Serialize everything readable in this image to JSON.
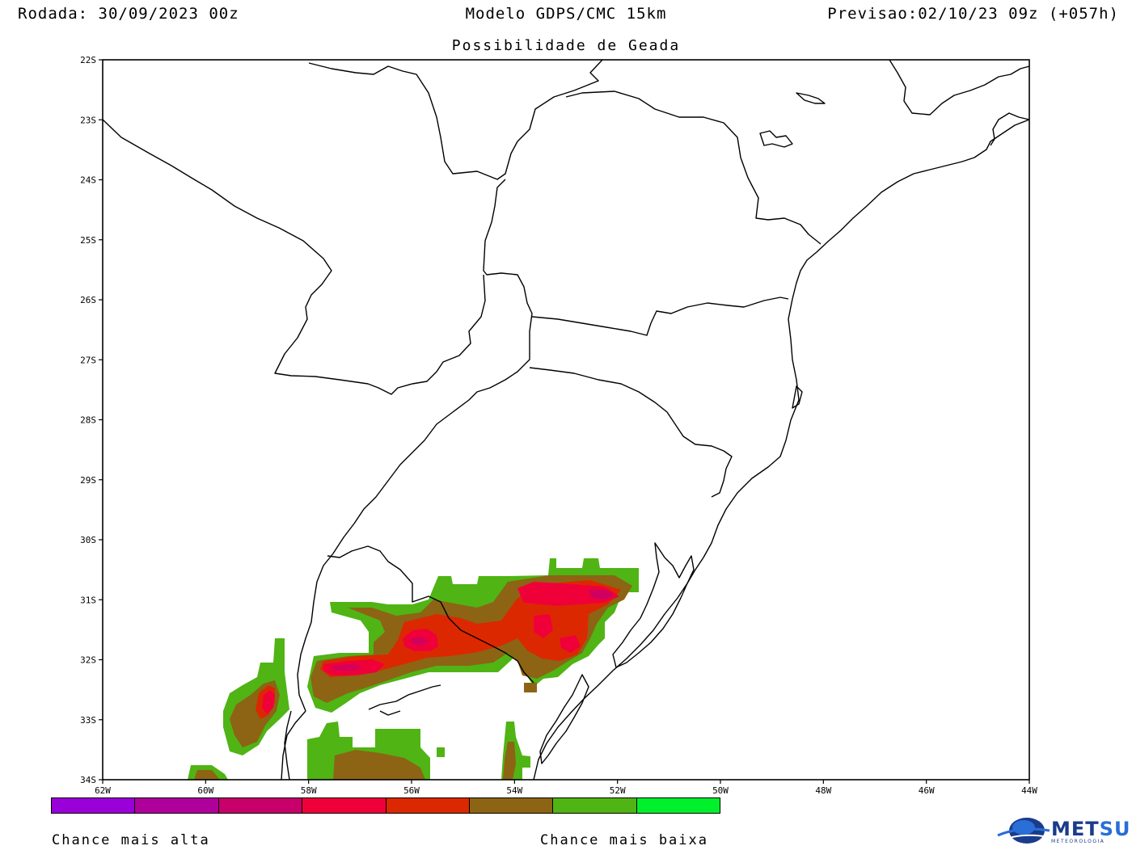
{
  "header": {
    "run_label": "Rodada: 30/09/2023 00z",
    "model_label": "Modelo GDPS/CMC 15km",
    "valid_label": "Previsao:02/10/23 09z (+057h)",
    "subtitle": "Possibilidade de Geada"
  },
  "axes": {
    "lat_labels": [
      "22S",
      "23S",
      "24S",
      "25S",
      "26S",
      "27S",
      "28S",
      "29S",
      "30S",
      "31S",
      "32S",
      "33S",
      "34S"
    ],
    "lon_labels": [
      "62W",
      "60W",
      "58W",
      "56W",
      "54W",
      "52W",
      "50W",
      "48W",
      "46W",
      "44W"
    ],
    "lat_range": [
      -34,
      -22
    ],
    "lon_range": [
      -62,
      -44
    ]
  },
  "colorbar": {
    "colors": [
      "#9a00d8",
      "#b0009c",
      "#c8006a",
      "#f00038",
      "#dc2800",
      "#8c6414",
      "#50b414",
      "#00f02c"
    ],
    "label_high": "Chance mais alta",
    "label_low": "Chance mais baixa"
  },
  "logo": {
    "name": "METSUL",
    "sub": "METEOROLOGIA",
    "colors": {
      "met": "#1a3c8c",
      "sul": "#2a6ed8"
    }
  }
}
